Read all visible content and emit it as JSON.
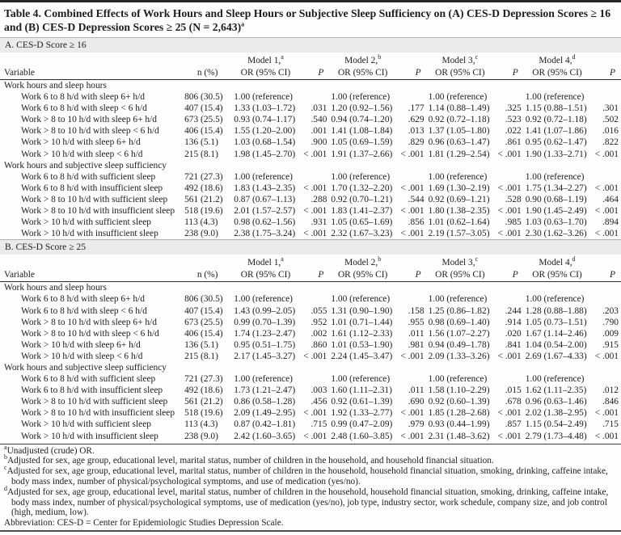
{
  "title": {
    "text": "Table 4. Combined Effects of Work Hours and Sleep Hours or Subjective Sleep Sufficiency on (A) CES-D Depression Scores ≥ 16 and (B) CES-D Depression Scores ≥ 25 (N = 2,643)",
    "sup": "a"
  },
  "columns": {
    "variable": "Variable",
    "n": "n (%)",
    "or": "OR (95% CI)",
    "p": "P",
    "models": [
      {
        "label": "Model 1,",
        "sup": "a"
      },
      {
        "label": "Model 2,",
        "sup": "b"
      },
      {
        "label": "Model 3,",
        "sup": "c"
      },
      {
        "label": "Model 4,",
        "sup": "d"
      }
    ]
  },
  "sections": [
    {
      "heading": "A. CES-D Score ≥ 16",
      "groups": [
        {
          "label": "Work hours and sleep hours",
          "rows": [
            {
              "variable": "Work 6 to 8 h/d with sleep 6+ h/d",
              "n": "806 (30.5)",
              "cells": [
                "1.00 (reference)",
                "",
                "1.00 (reference)",
                "",
                "1.00 (reference)",
                "",
                "1.00 (reference)",
                ""
              ]
            },
            {
              "variable": "Work 6 to 8 h/d with sleep < 6 h/d",
              "n": "407 (15.4)",
              "cells": [
                "1.33 (1.03–1.72)",
                ".031",
                "1.20 (0.92–1.56)",
                ".177",
                "1.14 (0.88–1.49)",
                ".325",
                "1.15 (0.88–1.51)",
                ".301"
              ]
            },
            {
              "variable": "Work > 8 to 10 h/d with sleep 6+ h/d",
              "n": "673 (25.5)",
              "cells": [
                "0.93 (0.74–1.17)",
                ".540",
                "0.94 (0.74–1.20)",
                ".629",
                "0.92 (0.72–1.18)",
                ".523",
                "0.92 (0.72–1.18)",
                ".502"
              ]
            },
            {
              "variable": "Work > 8 to 10 h/d with sleep < 6 h/d",
              "n": "406 (15.4)",
              "cells": [
                "1.55 (1.20–2.00)",
                ".001",
                "1.41 (1.08–1.84)",
                ".013",
                "1.37 (1.05–1.80)",
                ".022",
                "1.41 (1.07–1.86)",
                ".016"
              ]
            },
            {
              "variable": "Work > 10 h/d with sleep 6+ h/d",
              "n": "136 (5.1)",
              "cells": [
                "1.03 (0.68–1.54)",
                ".900",
                "1.05 (0.69–1.59)",
                ".829",
                "0.96 (0.63–1.47)",
                ".861",
                "0.95 (0.62–1.47)",
                ".822"
              ]
            },
            {
              "variable": "Work > 10 h/d with sleep < 6 h/d",
              "n": "215 (8.1)",
              "cells": [
                "1.98 (1.45–2.70)",
                "< .001",
                "1.91 (1.37–2.66)",
                "< .001",
                "1.81 (1.29–2.54)",
                "< .001",
                "1.90 (1.33–2.71)",
                "< .001"
              ]
            }
          ]
        },
        {
          "label": "Work hours and subjective sleep sufficiency",
          "rows": [
            {
              "variable": "Work 6 to 8 h/d with sufficient sleep",
              "n": "721 (27.3)",
              "cells": [
                "1.00 (reference)",
                "",
                "1.00 (reference)",
                "",
                "1.00 (reference)",
                "",
                "1.00 (reference)",
                ""
              ]
            },
            {
              "variable": "Work 6 to 8 h/d with insufficient sleep",
              "n": "492 (18.6)",
              "cells": [
                "1.83 (1.43–2.35)",
                "< .001",
                "1.70 (1.32–2.20)",
                "< .001",
                "1.69 (1.30–2.19)",
                "< .001",
                "1.75 (1.34–2.27)",
                "< .001"
              ]
            },
            {
              "variable": "Work > 8 to 10 h/d with sufficient sleep",
              "n": "561 (21.2)",
              "cells": [
                "0.87 (0.67–1.13)",
                ".288",
                "0.92 (0.70–1.21)",
                ".544",
                "0.92 (0.69–1.21)",
                ".528",
                "0.90 (0.68–1.19)",
                ".464"
              ]
            },
            {
              "variable": "Work > 8 to 10 h/d with insufficient sleep",
              "n": "518 (19.6)",
              "cells": [
                "2.01 (1.57–2.57)",
                "< .001",
                "1.83 (1.41–2.37)",
                "< .001",
                "1.80 (1.38–2.35)",
                "< .001",
                "1.90 (1.45–2.49)",
                "< .001"
              ]
            },
            {
              "variable": "Work > 10 h/d with sufficient sleep",
              "n": "113 (4.3)",
              "cells": [
                "0.98 (0.62–1.56)",
                ".931",
                "1.05 (0.65–1.69)",
                ".856",
                "1.01 (0.62–1.64)",
                ".985",
                "1.03 (0.63–1.70)",
                ".894"
              ]
            },
            {
              "variable": "Work > 10 h/d with insufficient sleep",
              "n": "238 (9.0)",
              "cells": [
                "2.38 (1.75–3.24)",
                "< .001",
                "2.32 (1.67–3.23)",
                "< .001",
                "2.19 (1.57–3.05)",
                "< .001",
                "2.30 (1.62–3.26)",
                "< .001"
              ]
            }
          ]
        }
      ]
    },
    {
      "heading": "B. CES-D Score ≥ 25",
      "groups": [
        {
          "label": "Work hours and sleep hours",
          "rows": [
            {
              "variable": "Work 6 to 8 h/d with sleep 6+ h/d",
              "n": "806 (30.5)",
              "cells": [
                "1.00 (reference)",
                "",
                "1.00 (reference)",
                "",
                "1.00 (reference)",
                "",
                "1.00 (reference)",
                ""
              ]
            },
            {
              "variable": "Work 6 to 8 h/d with sleep < 6 h/d",
              "n": "407 (15.4)",
              "cells": [
                "1.43 (0.99–2.05)",
                ".055",
                "1.31 (0.90–1.90)",
                ".158",
                "1.25 (0.86–1.82)",
                ".244",
                "1.28 (0.88–1.88)",
                ".203"
              ]
            },
            {
              "variable": "Work > 8 to 10 h/d with sleep 6+ h/d",
              "n": "673 (25.5)",
              "cells": [
                "0.99 (0.70–1.39)",
                ".952",
                "1.01 (0.71–1.44)",
                ".955",
                "0.98 (0.69–1.40)",
                ".914",
                "1.05 (0.73–1.51)",
                ".790"
              ]
            },
            {
              "variable": "Work > 8 to 10 h/d with sleep < 6 h/d",
              "n": "406 (15.4)",
              "cells": [
                "1.74 (1.23–2.47)",
                ".002",
                "1.61 (1.12–2.33)",
                ".011",
                "1.56 (1.07–2.27)",
                ".020",
                "1.67 (1.14–2.46)",
                ".009"
              ]
            },
            {
              "variable": "Work > 10 h/d with sleep 6+ h/d",
              "n": "136 (5.1)",
              "cells": [
                "0.95 (0.51–1.75)",
                ".860",
                "1.01 (0.53–1.90)",
                ".981",
                "0.94 (0.49–1.78)",
                ".841",
                "1.04 (0.54–2.00)",
                ".915"
              ]
            },
            {
              "variable": "Work > 10 h/d with sleep < 6 h/d",
              "n": "215 (8.1)",
              "cells": [
                "2.17 (1.45–3.27)",
                "< .001",
                "2.24 (1.45–3.47)",
                "< .001",
                "2.09 (1.33–3.26)",
                "< .001",
                "2.69 (1.67–4.33)",
                "< .001"
              ]
            }
          ]
        },
        {
          "label": "Work hours and subjective sleep sufficiency",
          "rows": [
            {
              "variable": "Work 6 to 8 h/d with sufficient sleep",
              "n": "721 (27.3)",
              "cells": [
                "1.00 (reference)",
                "",
                "1.00 (reference)",
                "",
                "1.00 (reference)",
                "",
                "1.00 (reference)",
                ""
              ]
            },
            {
              "variable": "Work 6 to 8 h/d with insufficient sleep",
              "n": "492 (18.6)",
              "cells": [
                "1.73 (1.21–2.47)",
                ".003",
                "1.60 (1.11–2.31)",
                ".011",
                "1.58 (1.10–2.29)",
                ".015",
                "1.62 (1.11–2.35)",
                ".012"
              ]
            },
            {
              "variable": "Work > 8 to 10 h/d with sufficient sleep",
              "n": "561 (21.2)",
              "cells": [
                "0.86 (0.58–1.28)",
                ".456",
                "0.92 (0.61–1.39)",
                ".690",
                "0.92 (0.60–1.39)",
                ".678",
                "0.96 (0.63–1.46)",
                ".846"
              ]
            },
            {
              "variable": "Work > 8 to 10 h/d with insufficient sleep",
              "n": "518 (19.6)",
              "cells": [
                "2.09 (1.49–2.95)",
                "< .001",
                "1.92 (1.33–2.77)",
                "< .001",
                "1.85 (1.28–2.68)",
                "< .001",
                "2.02 (1.38–2.95)",
                "< .001"
              ]
            },
            {
              "variable": "Work > 10 h/d with sufficient sleep",
              "n": "113 (4.3)",
              "cells": [
                "0.87 (0.42–1.81)",
                ".715",
                "0.99 (0.47–2.09)",
                ".979",
                "0.93 (0.44–1.99)",
                ".857",
                "1.15 (0.54–2.49)",
                ".715"
              ]
            },
            {
              "variable": "Work > 10 h/d with insufficient sleep",
              "n": "238 (9.0)",
              "cells": [
                "2.42 (1.60–3.65)",
                "< .001",
                "2.48 (1.60–3.85)",
                "< .001",
                "2.31 (1.48–3.62)",
                "< .001",
                "2.79 (1.73–4.48)",
                "< .001"
              ]
            }
          ]
        }
      ]
    }
  ],
  "footnotes": [
    {
      "sup": "a",
      "text": "Unadjusted (crude) OR."
    },
    {
      "sup": "b",
      "text": "Adjusted for sex, age group, educational level, marital status, number of children in the household, and household financial situation."
    },
    {
      "sup": "c",
      "text": "Adjusted for sex, age group, educational level, marital status, number of children in the household, household financial situation, smoking, drinking, caffeine intake, body mass index, number of physical/psychological symptoms, and use of medication (yes/no)."
    },
    {
      "sup": "d",
      "text": "Adjusted for sex, age group, educational level, marital status, number of children in the household, household financial situation, smoking, drinking, caffeine intake, body mass index, number of physical/psychological symptoms, use of medication (yes/no), job type, industry sector, work schedule, company size, and job control (high, medium, low)."
    }
  ],
  "abbreviation": "Abbreviation: CES-D = Center for Epidemiologic Studies Depression Scale.",
  "colors": {
    "band_background": "#ebebeb",
    "rule_dark": "#282828",
    "text": "#1d1d1d"
  }
}
